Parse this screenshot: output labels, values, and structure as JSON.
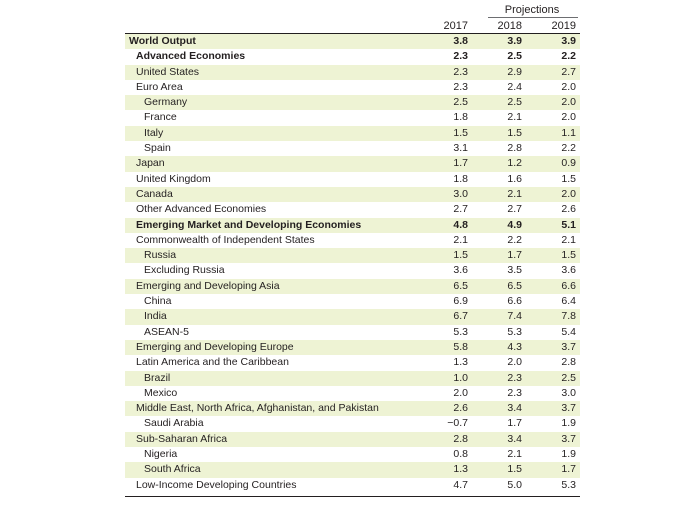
{
  "header": {
    "projections_label": "Projections",
    "years": [
      "2017",
      "2018",
      "2019"
    ]
  },
  "rows": [
    {
      "label": "World Output",
      "values": [
        "3.8",
        "3.9",
        "3.9"
      ],
      "level": 0,
      "bold": true,
      "shaded": true
    },
    {
      "label": "Advanced Economies",
      "values": [
        "2.3",
        "2.5",
        "2.2"
      ],
      "level": 1,
      "bold": true,
      "shaded": false
    },
    {
      "label": "United States",
      "values": [
        "2.3",
        "2.9",
        "2.7"
      ],
      "level": 1,
      "bold": false,
      "shaded": true
    },
    {
      "label": "Euro Area",
      "values": [
        "2.3",
        "2.4",
        "2.0"
      ],
      "level": 1,
      "bold": false,
      "shaded": false
    },
    {
      "label": "Germany",
      "values": [
        "2.5",
        "2.5",
        "2.0"
      ],
      "level": 2,
      "bold": false,
      "shaded": true
    },
    {
      "label": "France",
      "values": [
        "1.8",
        "2.1",
        "2.0"
      ],
      "level": 2,
      "bold": false,
      "shaded": false
    },
    {
      "label": "Italy",
      "values": [
        "1.5",
        "1.5",
        "1.1"
      ],
      "level": 2,
      "bold": false,
      "shaded": true
    },
    {
      "label": "Spain",
      "values": [
        "3.1",
        "2.8",
        "2.2"
      ],
      "level": 2,
      "bold": false,
      "shaded": false
    },
    {
      "label": "Japan",
      "values": [
        "1.7",
        "1.2",
        "0.9"
      ],
      "level": 1,
      "bold": false,
      "shaded": true
    },
    {
      "label": "United Kingdom",
      "values": [
        "1.8",
        "1.6",
        "1.5"
      ],
      "level": 1,
      "bold": false,
      "shaded": false
    },
    {
      "label": "Canada",
      "values": [
        "3.0",
        "2.1",
        "2.0"
      ],
      "level": 1,
      "bold": false,
      "shaded": true
    },
    {
      "label": "Other Advanced Economies",
      "values": [
        "2.7",
        "2.7",
        "2.6"
      ],
      "level": 1,
      "bold": false,
      "shaded": false
    },
    {
      "label": "Emerging Market and Developing Economies",
      "values": [
        "4.8",
        "4.9",
        "5.1"
      ],
      "level": 1,
      "bold": true,
      "shaded": true
    },
    {
      "label": "Commonwealth of Independent States",
      "values": [
        "2.1",
        "2.2",
        "2.1"
      ],
      "level": 1,
      "bold": false,
      "shaded": false
    },
    {
      "label": "Russia",
      "values": [
        "1.5",
        "1.7",
        "1.5"
      ],
      "level": 2,
      "bold": false,
      "shaded": true
    },
    {
      "label": "Excluding Russia",
      "values": [
        "3.6",
        "3.5",
        "3.6"
      ],
      "level": 2,
      "bold": false,
      "shaded": false
    },
    {
      "label": "Emerging and Developing Asia",
      "values": [
        "6.5",
        "6.5",
        "6.6"
      ],
      "level": 1,
      "bold": false,
      "shaded": true
    },
    {
      "label": "China",
      "values": [
        "6.9",
        "6.6",
        "6.4"
      ],
      "level": 2,
      "bold": false,
      "shaded": false
    },
    {
      "label": "India",
      "values": [
        "6.7",
        "7.4",
        "7.8"
      ],
      "level": 2,
      "bold": false,
      "shaded": true
    },
    {
      "label": "ASEAN-5",
      "values": [
        "5.3",
        "5.3",
        "5.4"
      ],
      "level": 2,
      "bold": false,
      "shaded": false
    },
    {
      "label": "Emerging and Developing Europe",
      "values": [
        "5.8",
        "4.3",
        "3.7"
      ],
      "level": 1,
      "bold": false,
      "shaded": true
    },
    {
      "label": "Latin America and the Caribbean",
      "values": [
        "1.3",
        "2.0",
        "2.8"
      ],
      "level": 1,
      "bold": false,
      "shaded": false
    },
    {
      "label": "Brazil",
      "values": [
        "1.0",
        "2.3",
        "2.5"
      ],
      "level": 2,
      "bold": false,
      "shaded": true
    },
    {
      "label": "Mexico",
      "values": [
        "2.0",
        "2.3",
        "3.0"
      ],
      "level": 2,
      "bold": false,
      "shaded": false
    },
    {
      "label": "Middle East, North Africa, Afghanistan, and Pakistan",
      "values": [
        "2.6",
        "3.4",
        "3.7"
      ],
      "level": 1,
      "bold": false,
      "shaded": true
    },
    {
      "label": "Saudi Arabia",
      "values": [
        "−0.7",
        "1.7",
        "1.9"
      ],
      "level": 2,
      "bold": false,
      "shaded": false
    },
    {
      "label": "Sub-Saharan Africa",
      "values": [
        "2.8",
        "3.4",
        "3.7"
      ],
      "level": 1,
      "bold": false,
      "shaded": true
    },
    {
      "label": "Nigeria",
      "values": [
        "0.8",
        "2.1",
        "1.9"
      ],
      "level": 2,
      "bold": false,
      "shaded": false
    },
    {
      "label": "South Africa",
      "values": [
        "1.3",
        "1.5",
        "1.7"
      ],
      "level": 2,
      "bold": false,
      "shaded": true
    },
    {
      "label": "Low-Income Developing Countries",
      "values": [
        "4.7",
        "5.0",
        "5.3"
      ],
      "level": 1,
      "bold": false,
      "shaded": false
    }
  ]
}
